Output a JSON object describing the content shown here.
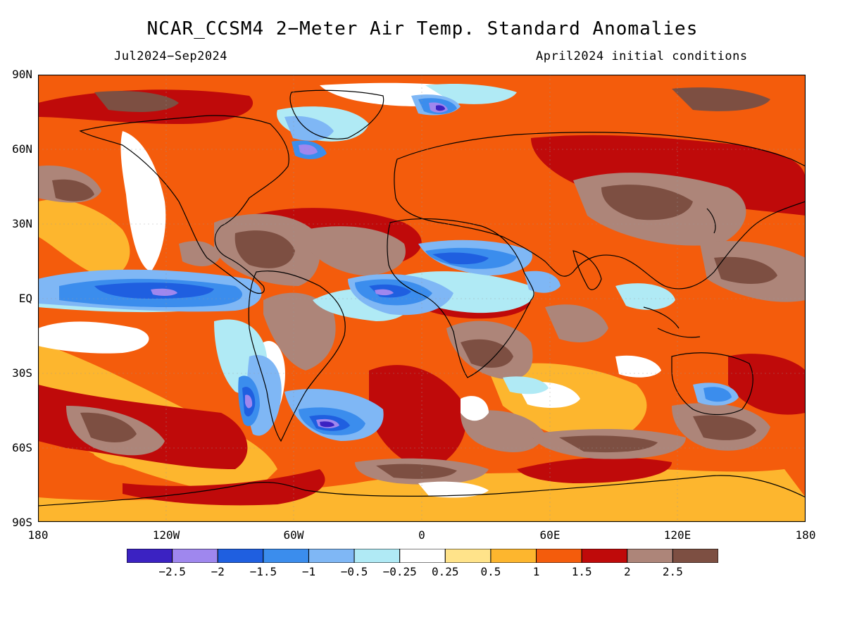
{
  "title": "NCAR_CCSM4 2−Meter Air Temp. Standard Anomalies",
  "subtitle_left": "Jul2024−Sep2024",
  "subtitle_right": "April2024 initial conditions",
  "lat_labels": [
    "90N",
    "60N",
    "30N",
    "EQ",
    "30S",
    "60S",
    "90S"
  ],
  "lon_labels": [
    "180",
    "120W",
    "60W",
    "0",
    "60E",
    "120E",
    "180"
  ],
  "colorbar": {
    "labels": [
      "−2.5",
      "−2",
      "−1.5",
      "−1",
      "−0.5",
      "−0.25",
      "0.25",
      "0.5",
      "1",
      "1.5",
      "2",
      "2.5"
    ],
    "colors": [
      "#3b22c2",
      "#9f87ee",
      "#1f5fe0",
      "#3b8ded",
      "#7fb7f5",
      "#b0eaf5",
      "#ffffff",
      "#ffe38a",
      "#fdb62e",
      "#f45c0c",
      "#bf0a0a",
      "#ad8579",
      "#7d4f42"
    ]
  }
}
